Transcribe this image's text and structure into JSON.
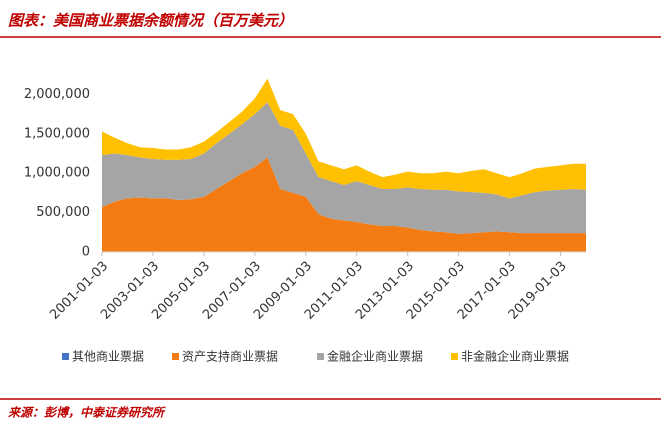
{
  "chart_data": {
    "type": "stacked-area",
    "title": "图表：美国商业票据余额情况（百万美元）",
    "source": "来源：彭博，中泰证券研究所",
    "x": [
      "2001-01-03",
      "2001-07-03",
      "2002-01-03",
      "2002-07-03",
      "2003-01-03",
      "2003-07-03",
      "2004-01-03",
      "2004-07-03",
      "2005-01-03",
      "2005-07-03",
      "2006-01-03",
      "2006-07-03",
      "2007-01-03",
      "2007-07-03",
      "2008-01-03",
      "2008-07-03",
      "2009-01-03",
      "2009-07-03",
      "2010-01-03",
      "2010-07-03",
      "2011-01-03",
      "2011-07-03",
      "2012-01-03",
      "2012-07-03",
      "2013-01-03",
      "2013-07-03",
      "2014-01-03",
      "2014-07-03",
      "2015-01-03",
      "2015-07-03",
      "2016-01-03",
      "2016-07-03",
      "2017-01-03",
      "2017-07-03",
      "2018-01-03",
      "2018-07-03",
      "2019-01-03",
      "2019-07-03",
      "2020-01-03"
    ],
    "series": [
      {
        "name": "其他商业票据",
        "color": "#4472c4",
        "values": [
          0,
          0,
          0,
          0,
          0,
          0,
          0,
          0,
          0,
          0,
          0,
          0,
          0,
          0,
          0,
          0,
          0,
          0,
          0,
          0,
          0,
          0,
          0,
          0,
          0,
          0,
          0,
          0,
          0,
          0,
          0,
          0,
          0,
          0,
          0,
          0,
          0,
          0,
          0
        ]
      },
      {
        "name": "资产支持商业票据",
        "color": "#f47b12",
        "values": [
          570000,
          640000,
          680000,
          690000,
          680000,
          680000,
          660000,
          670000,
          700000,
          800000,
          900000,
          1000000,
          1080000,
          1200000,
          800000,
          750000,
          700000,
          480000,
          420000,
          400000,
          380000,
          350000,
          330000,
          330000,
          310000,
          280000,
          260000,
          250000,
          230000,
          240000,
          250000,
          260000,
          250000,
          240000,
          240000,
          240000,
          240000,
          240000,
          240000
        ]
      },
      {
        "name": "金融企业商业票据",
        "color": "#a5a5a5",
        "values": [
          660000,
          610000,
          550000,
          510000,
          500000,
          490000,
          510000,
          510000,
          550000,
          580000,
          600000,
          620000,
          670000,
          700000,
          800000,
          800000,
          550000,
          470000,
          480000,
          450000,
          520000,
          500000,
          470000,
          470000,
          510000,
          520000,
          530000,
          540000,
          540000,
          520000,
          500000,
          470000,
          430000,
          480000,
          520000,
          540000,
          550000,
          560000,
          550000
        ]
      },
      {
        "name": "非金融企业商业票据",
        "color": "#ffc000",
        "values": [
          300000,
          200000,
          150000,
          130000,
          140000,
          130000,
          130000,
          150000,
          150000,
          140000,
          150000,
          160000,
          200000,
          300000,
          200000,
          200000,
          250000,
          200000,
          200000,
          200000,
          200000,
          170000,
          150000,
          180000,
          200000,
          200000,
          210000,
          230000,
          230000,
          270000,
          300000,
          270000,
          270000,
          280000,
          300000,
          300000,
          310000,
          320000,
          330000
        ]
      }
    ],
    "xlim": [
      "2001-01-03",
      "2020-01-03"
    ],
    "xticks": [
      "2001-01-03",
      "2003-01-03",
      "2005-01-03",
      "2007-01-03",
      "2009-01-03",
      "2011-01-03",
      "2013-01-03",
      "2015-01-03",
      "2017-01-03",
      "2019-01-03"
    ],
    "ylim": [
      0,
      2500000
    ],
    "yticks": [
      0,
      {
        "value": 500000,
        "label": "500,000"
      },
      {
        "value": 1000000,
        "label": "1,000,000"
      },
      {
        "value": 1500000,
        "label": "1,500,000"
      },
      {
        "value": 2000000,
        "label": "2,000,000"
      }
    ],
    "legend": "bottom"
  }
}
